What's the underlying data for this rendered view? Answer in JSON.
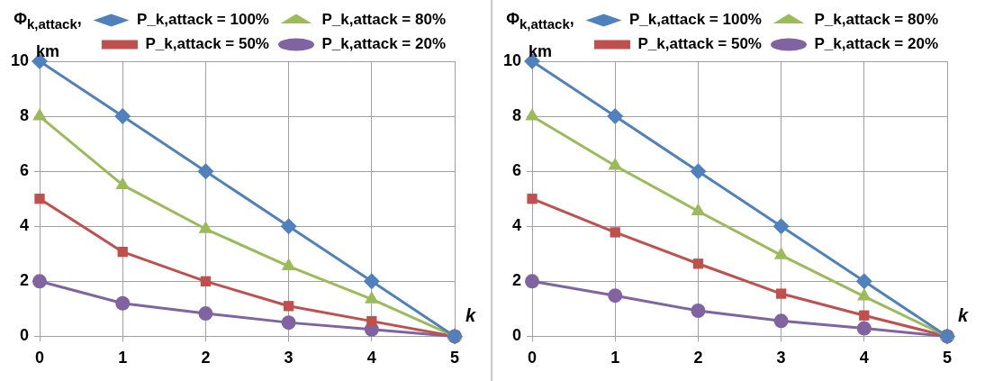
{
  "chart_data": [
    {
      "type": "line",
      "ylabel": "Φ$_{k,attack}$, km",
      "xlabel": "k",
      "x": [
        0,
        1,
        2,
        3,
        4,
        5
      ],
      "xlim": [
        0,
        5
      ],
      "xticks": [
        0,
        1,
        2,
        3,
        4,
        5
      ],
      "ylim": [
        0,
        10
      ],
      "yticks": [
        0,
        2,
        4,
        6,
        8,
        10
      ],
      "grid": true,
      "legend": "top right",
      "line_style": "solid",
      "series": [
        {
          "name": "P_k,attack = 100%",
          "color": "#4f81bd",
          "marker": "diamond",
          "values": [
            10,
            8,
            6,
            4,
            2,
            0
          ]
        },
        {
          "name": "P_k,attack = 80%",
          "color": "#9bbb59",
          "marker": "triangle",
          "values": [
            8,
            5.5,
            3.9,
            2.55,
            1.35,
            0
          ]
        },
        {
          "name": "P_k,attack = 50%",
          "color": "#c0504d",
          "marker": "square",
          "values": [
            5,
            3.07,
            2.0,
            1.1,
            0.55,
            0
          ]
        },
        {
          "name": "P_k,attack = 20%",
          "color": "#8064a2",
          "marker": "circle",
          "values": [
            2,
            1.2,
            0.83,
            0.5,
            0.25,
            0
          ]
        }
      ]
    },
    {
      "type": "line",
      "ylabel": "Φ$_{k,attack}$, km",
      "xlabel": "k",
      "x": [
        0,
        1,
        2,
        3,
        4,
        5
      ],
      "xlim": [
        0,
        5
      ],
      "xticks": [
        0,
        1,
        2,
        3,
        4,
        5
      ],
      "ylim": [
        0,
        10
      ],
      "yticks": [
        0,
        2,
        4,
        6,
        8,
        10
      ],
      "grid": true,
      "legend": "top right",
      "line_style": "solid",
      "series": [
        {
          "name": "P_k,attack = 100%",
          "color": "#4f81bd",
          "marker": "diamond",
          "values": [
            10,
            8,
            6,
            4,
            2,
            0
          ]
        },
        {
          "name": "P_k,attack = 80%",
          "color": "#9bbb59",
          "marker": "triangle",
          "values": [
            8,
            6.2,
            4.55,
            2.95,
            1.45,
            0
          ]
        },
        {
          "name": "P_k,attack = 50%",
          "color": "#c0504d",
          "marker": "square",
          "values": [
            5,
            3.78,
            2.64,
            1.55,
            0.76,
            0
          ]
        },
        {
          "name": "P_k,attack = 20%",
          "color": "#8064a2",
          "marker": "circle",
          "values": [
            2,
            1.48,
            0.93,
            0.56,
            0.29,
            0
          ]
        }
      ]
    }
  ]
}
